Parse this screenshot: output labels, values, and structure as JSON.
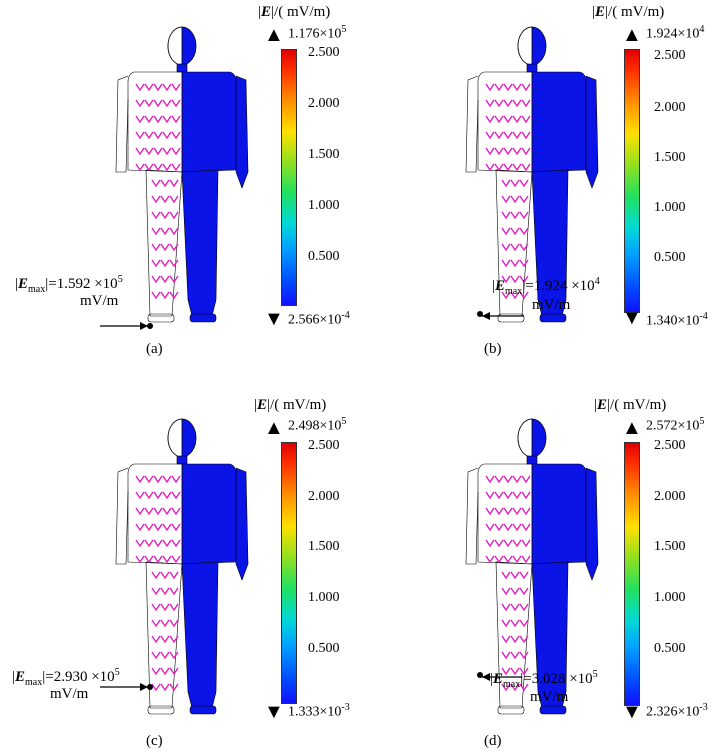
{
  "panels": [
    {
      "id": "a",
      "caption": "(a)",
      "max": "1.176×10",
      "max_exp": "5",
      "min": "2.566×10",
      "min_exp": "-4",
      "emax_value": "=1.592 ×10",
      "emax_exp": "5",
      "emax_unit": "mV/m"
    },
    {
      "id": "b",
      "caption": "(b)",
      "max": "1.924×10",
      "max_exp": "4",
      "min": "1.340×10",
      "min_exp": "-4",
      "emax_value": "=1.924 ×10",
      "emax_exp": "4",
      "emax_unit": "mV/m"
    },
    {
      "id": "c",
      "caption": "(c)",
      "max": "2.498×10",
      "max_exp": "5",
      "min": "1.333×10",
      "min_exp": "-3",
      "emax_value": "=2.930 ×10",
      "emax_exp": "5",
      "emax_unit": "mV/m"
    },
    {
      "id": "d",
      "caption": "(d)",
      "max": "2.572×10",
      "max_exp": "5",
      "min": "2.326×10",
      "min_exp": "-3",
      "emax_value": "=3.028 ×10",
      "emax_exp": "5",
      "emax_unit": "mV/m"
    }
  ],
  "colorbar": {
    "title_symbol": "E",
    "title_unit": "/( mV/m)",
    "ticks": [
      "2.500",
      "2.000",
      "1.500",
      "1.000",
      "0.500"
    ]
  },
  "emax_symbol": "E",
  "emax_subscript": "max",
  "colors": {
    "body": "#0a14e6",
    "arrow_marker": "#e020c0"
  }
}
